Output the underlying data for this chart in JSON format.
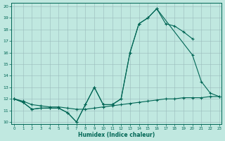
{
  "xlabel": "Humidex (Indice chaleur)",
  "bg_color": "#c0e8e0",
  "line_color": "#006655",
  "grid_color": "#99bbbb",
  "xlim": [
    -0.3,
    23.3
  ],
  "ylim": [
    9.8,
    20.3
  ],
  "x_ticks": [
    0,
    1,
    2,
    3,
    4,
    5,
    6,
    7,
    8,
    9,
    10,
    11,
    12,
    13,
    14,
    15,
    16,
    17,
    18,
    19,
    20,
    21,
    22,
    23
  ],
  "y_ticks": [
    10,
    11,
    12,
    13,
    14,
    15,
    16,
    17,
    18,
    19,
    20
  ],
  "line1": {
    "x": [
      0,
      1,
      2,
      3,
      4,
      5,
      6,
      7,
      8,
      9,
      10,
      11,
      12,
      13,
      14,
      15,
      16,
      17,
      18,
      19,
      20
    ],
    "y": [
      12.0,
      11.7,
      11.1,
      11.2,
      11.2,
      11.2,
      10.8,
      10.0,
      11.5,
      13.0,
      11.5,
      11.5,
      12.0,
      16.0,
      18.5,
      19.0,
      19.8,
      18.5,
      18.3,
      17.8,
      17.2
    ]
  },
  "line2": {
    "x": [
      0,
      1,
      2,
      3,
      4,
      5,
      6,
      7,
      8,
      9,
      10,
      11,
      12,
      13,
      14,
      15,
      16,
      20,
      21,
      22,
      23
    ],
    "y": [
      12.0,
      11.7,
      11.1,
      11.2,
      11.2,
      11.2,
      10.8,
      10.0,
      11.5,
      13.0,
      11.5,
      11.5,
      12.0,
      16.0,
      18.5,
      19.0,
      19.8,
      15.8,
      13.5,
      12.5,
      12.2
    ]
  },
  "line3": {
    "x": [
      0,
      1,
      2,
      3,
      4,
      5,
      6,
      7,
      8,
      9,
      10,
      11,
      12,
      13,
      14,
      15,
      16,
      17,
      18,
      19,
      20,
      21,
      22,
      23
    ],
    "y": [
      12.0,
      11.8,
      11.5,
      11.4,
      11.3,
      11.3,
      11.2,
      11.1,
      11.1,
      11.2,
      11.3,
      11.4,
      11.5,
      11.6,
      11.7,
      11.8,
      11.9,
      12.0,
      12.0,
      12.1,
      12.1,
      12.1,
      12.2,
      12.2
    ]
  }
}
